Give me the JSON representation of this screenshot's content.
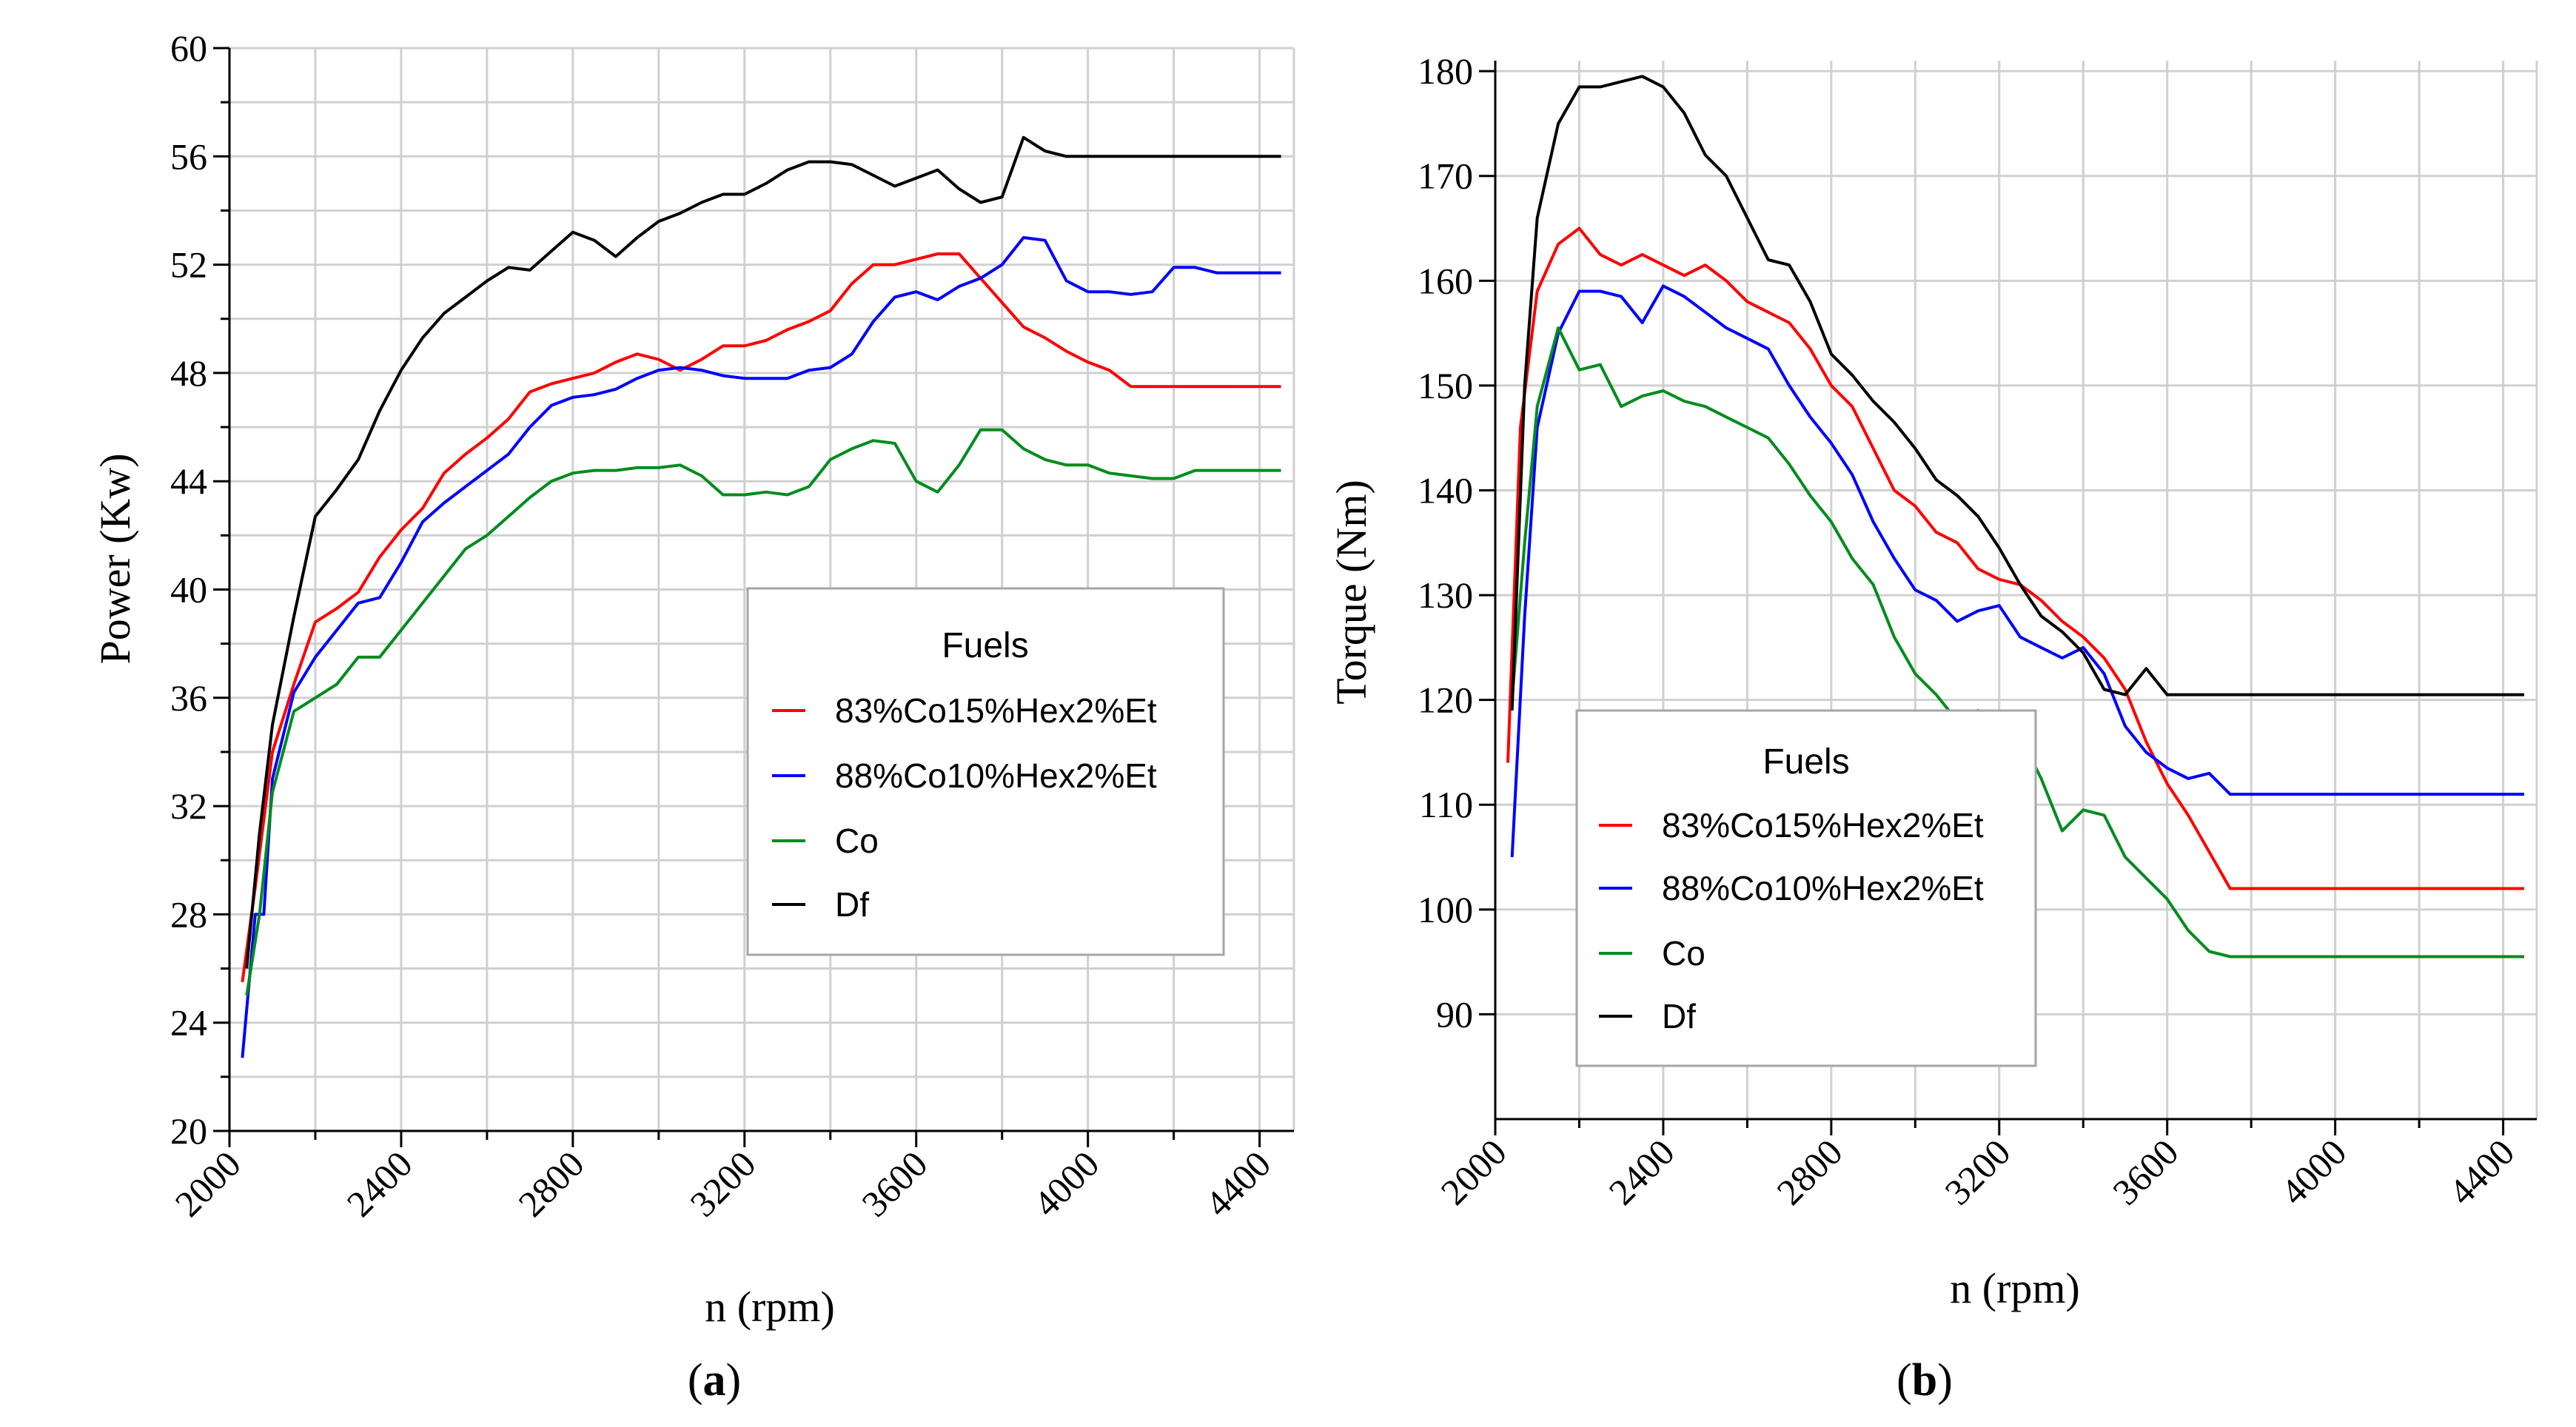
{
  "legend_colors": [
    "#ff0000",
    "#0000ff",
    "#008c1e",
    "#000000"
  ],
  "chart_data": [
    {
      "id": "a",
      "type": "line",
      "panel_prefix": "(",
      "panel_letter": "a",
      "panel_suffix": ")",
      "xlabel": "n (rpm)",
      "ylabel": "Power (Kw)",
      "xlim": [
        2000,
        4480
      ],
      "ylim": [
        20,
        60
      ],
      "x_ticks": [
        2000,
        2400,
        2800,
        3200,
        3600,
        4000,
        4400
      ],
      "x_ticks_minor": [
        2200,
        2600,
        3000,
        3400,
        3800,
        4200
      ],
      "y_ticks": [
        20,
        24,
        28,
        32,
        36,
        40,
        44,
        48,
        52,
        56,
        60
      ],
      "y_ticks_minor": [
        22,
        26,
        30,
        34,
        38,
        42,
        46,
        50,
        54,
        58
      ],
      "grid": true,
      "legend_title": "Fuels",
      "series": [
        {
          "name": "83%Co15%Hex2%Et",
          "color": "#ff0000",
          "x": [
            2030,
            2060,
            2100,
            2150,
            2200,
            2250,
            2300,
            2350,
            2400,
            2450,
            2500,
            2550,
            2600,
            2650,
            2700,
            2750,
            2800,
            2850,
            2900,
            2950,
            3000,
            3050,
            3100,
            3150,
            3200,
            3250,
            3300,
            3350,
            3400,
            3450,
            3500,
            3550,
            3600,
            3650,
            3700,
            3750,
            3800,
            3850,
            3900,
            3950,
            4000,
            4050,
            4100,
            4150,
            4200,
            4250,
            4300,
            4350,
            4400,
            4430,
            4450
          ],
          "y": [
            25.5,
            29,
            34,
            36.5,
            38.8,
            39.3,
            39.9,
            41.2,
            42.2,
            43,
            44.3,
            45,
            45.6,
            46.3,
            47.3,
            47.6,
            47.8,
            48,
            48.4,
            48.7,
            48.5,
            48.1,
            48.5,
            49,
            49,
            49.2,
            49.6,
            49.9,
            50.3,
            51.3,
            52,
            52,
            52.2,
            52.4,
            52.4,
            51.5,
            50.6,
            49.7,
            49.3,
            48.8,
            48.4,
            48.1,
            47.5,
            47.5,
            47.5,
            47.5,
            47.5,
            47.5,
            47.5,
            47.5,
            47.5
          ]
        },
        {
          "name": "88%Co10%Hex2%Et",
          "color": "#0000ff",
          "x": [
            2030,
            2060,
            2080,
            2100,
            2150,
            2200,
            2250,
            2300,
            2350,
            2400,
            2450,
            2500,
            2550,
            2600,
            2650,
            2700,
            2750,
            2800,
            2850,
            2900,
            2950,
            3000,
            3050,
            3100,
            3150,
            3200,
            3250,
            3300,
            3350,
            3400,
            3450,
            3500,
            3550,
            3600,
            3650,
            3700,
            3750,
            3800,
            3850,
            3900,
            3950,
            4000,
            4050,
            4100,
            4150,
            4200,
            4250,
            4300,
            4350,
            4400,
            4450
          ],
          "y": [
            22.7,
            28,
            28,
            33,
            36.2,
            37.5,
            38.5,
            39.5,
            39.7,
            41,
            42.5,
            43.2,
            43.8,
            44.4,
            45,
            46,
            46.8,
            47.1,
            47.2,
            47.4,
            47.8,
            48.1,
            48.2,
            48.1,
            47.9,
            47.8,
            47.8,
            47.8,
            48.1,
            48.2,
            48.7,
            49.9,
            50.8,
            51,
            50.7,
            51.2,
            51.5,
            52,
            53,
            52.9,
            51.4,
            51,
            51,
            50.9,
            51,
            51.9,
            51.9,
            51.7,
            51.7,
            51.7,
            51.7
          ]
        },
        {
          "name": "Co",
          "color": "#008c1e",
          "x": [
            2040,
            2070,
            2100,
            2150,
            2200,
            2250,
            2300,
            2350,
            2400,
            2450,
            2500,
            2550,
            2600,
            2650,
            2700,
            2750,
            2800,
            2850,
            2900,
            2950,
            3000,
            3050,
            3100,
            3150,
            3200,
            3250,
            3300,
            3350,
            3400,
            3450,
            3500,
            3550,
            3600,
            3650,
            3700,
            3750,
            3800,
            3850,
            3900,
            3950,
            4000,
            4050,
            4100,
            4150,
            4200,
            4250,
            4300,
            4350,
            4400,
            4430,
            4450
          ],
          "y": [
            25,
            28,
            32.5,
            35.5,
            36,
            36.5,
            37.5,
            37.5,
            38.5,
            39.5,
            40.5,
            41.5,
            42,
            42.7,
            43.4,
            44,
            44.3,
            44.4,
            44.4,
            44.5,
            44.5,
            44.6,
            44.2,
            43.5,
            43.5,
            43.6,
            43.5,
            43.8,
            44.8,
            45.2,
            45.5,
            45.4,
            44,
            43.6,
            44.6,
            45.9,
            45.9,
            45.2,
            44.8,
            44.6,
            44.6,
            44.3,
            44.2,
            44.1,
            44.1,
            44.4,
            44.4,
            44.4,
            44.4,
            44.4,
            44.4
          ]
        },
        {
          "name": "Df",
          "color": "#000000",
          "x": [
            2040,
            2070,
            2100,
            2150,
            2200,
            2250,
            2300,
            2350,
            2400,
            2450,
            2500,
            2550,
            2600,
            2650,
            2700,
            2750,
            2800,
            2850,
            2900,
            2950,
            3000,
            3050,
            3100,
            3150,
            3200,
            3250,
            3300,
            3350,
            3400,
            3450,
            3500,
            3550,
            3600,
            3650,
            3700,
            3750,
            3800,
            3850,
            3900,
            3950,
            4000,
            4050,
            4100,
            4150,
            4200,
            4250,
            4300,
            4350,
            4380,
            4410,
            4450
          ],
          "y": [
            26,
            31,
            35,
            39,
            42.7,
            43.7,
            44.8,
            46.6,
            48.1,
            49.3,
            50.2,
            50.8,
            51.4,
            51.9,
            51.8,
            52.5,
            53.2,
            52.9,
            52.3,
            53,
            53.6,
            53.9,
            54.3,
            54.6,
            54.6,
            55,
            55.5,
            55.8,
            55.8,
            55.7,
            55.3,
            54.9,
            55.2,
            55.5,
            54.8,
            54.3,
            54.5,
            56.7,
            56.2,
            56,
            56,
            56,
            56,
            56,
            56,
            56,
            56,
            56,
            56,
            56,
            56
          ]
        }
      ]
    },
    {
      "id": "b",
      "type": "line",
      "panel_prefix": "(",
      "panel_letter": "b",
      "panel_suffix": ")",
      "xlabel": "n (rpm)",
      "ylabel": "Torque (Nm)",
      "xlim": [
        2000,
        4480
      ],
      "ylim": [
        80,
        181
      ],
      "x_ticks": [
        2000,
        2400,
        2800,
        3200,
        3600,
        4000,
        4400
      ],
      "x_ticks_minor": [
        2200,
        2600,
        3000,
        3400,
        3800,
        4200
      ],
      "y_ticks": [
        90,
        100,
        110,
        120,
        130,
        140,
        150,
        160,
        170,
        180
      ],
      "y_ticks_minor": [],
      "grid": true,
      "legend_title": "Fuels",
      "series": [
        {
          "name": "83%Co15%Hex2%Et",
          "color": "#ff0000",
          "x": [
            2030,
            2060,
            2100,
            2150,
            2200,
            2250,
            2300,
            2350,
            2400,
            2450,
            2500,
            2550,
            2600,
            2650,
            2700,
            2750,
            2800,
            2850,
            2900,
            2950,
            3000,
            3050,
            3100,
            3150,
            3200,
            3250,
            3300,
            3350,
            3400,
            3450,
            3500,
            3550,
            3600,
            3650,
            3700,
            3750,
            3800,
            3850,
            3900,
            3950,
            4000,
            4050,
            4100,
            4150,
            4200,
            4250,
            4300,
            4350,
            4400,
            4430,
            4450
          ],
          "y": [
            114,
            146,
            159,
            163.5,
            165,
            162.5,
            161.5,
            162.5,
            161.5,
            160.5,
            161.5,
            160,
            158,
            157,
            156,
            153.5,
            150,
            148,
            144,
            140,
            138.5,
            136,
            135,
            132.5,
            131.5,
            131,
            129.5,
            127.5,
            126,
            124,
            121,
            116,
            112,
            109,
            105.5,
            102,
            102,
            102,
            102,
            102,
            102,
            102,
            102,
            102,
            102,
            102,
            102,
            102,
            102,
            102,
            102
          ]
        },
        {
          "name": "88%Co10%Hex2%Et",
          "color": "#0000ff",
          "x": [
            2040,
            2070,
            2100,
            2150,
            2200,
            2250,
            2300,
            2350,
            2400,
            2450,
            2500,
            2550,
            2600,
            2650,
            2700,
            2750,
            2800,
            2850,
            2900,
            2950,
            3000,
            3050,
            3100,
            3150,
            3200,
            3250,
            3300,
            3350,
            3400,
            3450,
            3500,
            3550,
            3600,
            3650,
            3700,
            3750,
            3800,
            3850,
            3900,
            3950,
            4000,
            4050,
            4100,
            4150,
            4200,
            4250,
            4300,
            4350,
            4400,
            4430,
            4450
          ],
          "y": [
            105,
            128,
            146,
            155,
            159,
            159,
            158.5,
            156,
            159.5,
            158.5,
            157,
            155.5,
            154.5,
            153.5,
            150,
            147,
            144.5,
            141.5,
            137,
            133.5,
            130.5,
            129.5,
            127.5,
            128.5,
            129,
            126,
            125,
            124,
            125,
            122.5,
            117.5,
            115,
            113.5,
            112.5,
            113,
            111,
            111,
            111,
            111,
            111,
            111,
            111,
            111,
            111,
            111,
            111,
            111,
            111,
            111,
            111,
            111
          ]
        },
        {
          "name": "Co",
          "color": "#008c1e",
          "x": [
            2040,
            2070,
            2100,
            2150,
            2200,
            2250,
            2300,
            2350,
            2400,
            2450,
            2500,
            2550,
            2600,
            2650,
            2700,
            2750,
            2800,
            2850,
            2900,
            2950,
            3000,
            3050,
            3100,
            3150,
            3200,
            3250,
            3300,
            3350,
            3400,
            3450,
            3500,
            3550,
            3600,
            3650,
            3700,
            3750,
            3800,
            3850,
            3900,
            3950,
            4000,
            4050,
            4100,
            4150,
            4200,
            4250,
            4300,
            4350,
            4400,
            4430,
            4450
          ],
          "y": [
            120,
            135,
            148,
            155.5,
            151.5,
            152,
            148,
            149,
            149.5,
            148.5,
            148,
            147,
            146,
            145,
            142.5,
            139.5,
            137,
            133.5,
            131,
            126,
            122.5,
            120.5,
            118,
            119,
            118,
            116.5,
            112.5,
            107.5,
            109.5,
            109,
            105,
            103,
            101,
            98,
            96,
            95.5,
            95.5,
            95.5,
            95.5,
            95.5,
            95.5,
            95.5,
            95.5,
            95.5,
            95.5,
            95.5,
            95.5,
            95.5,
            95.5,
            95.5,
            95.5
          ]
        },
        {
          "name": "Df",
          "color": "#000000",
          "x": [
            2040,
            2070,
            2100,
            2150,
            2200,
            2250,
            2300,
            2350,
            2400,
            2450,
            2500,
            2550,
            2600,
            2650,
            2700,
            2750,
            2800,
            2850,
            2900,
            2950,
            3000,
            3050,
            3100,
            3150,
            3200,
            3250,
            3300,
            3350,
            3400,
            3450,
            3500,
            3550,
            3600,
            3650,
            3700,
            3750,
            3800,
            3850,
            3900,
            3950,
            4000,
            4050,
            4100,
            4150,
            4200,
            4250,
            4300,
            4350,
            4400,
            4430,
            4450
          ],
          "y": [
            119,
            150,
            166,
            175,
            178.5,
            178.5,
            179,
            179.5,
            178.5,
            176,
            172,
            170,
            166,
            162,
            161.5,
            158,
            153,
            151,
            148.5,
            146.5,
            144,
            141,
            139.5,
            137.5,
            134.5,
            131,
            128,
            126.5,
            124.5,
            121,
            120.5,
            123,
            120.5,
            120.5,
            120.5,
            120.5,
            120.5,
            120.5,
            120.5,
            120.5,
            120.5,
            120.5,
            120.5,
            120.5,
            120.5,
            120.5,
            120.5,
            120.5,
            120.5,
            120.5,
            120.5
          ]
        }
      ]
    }
  ]
}
